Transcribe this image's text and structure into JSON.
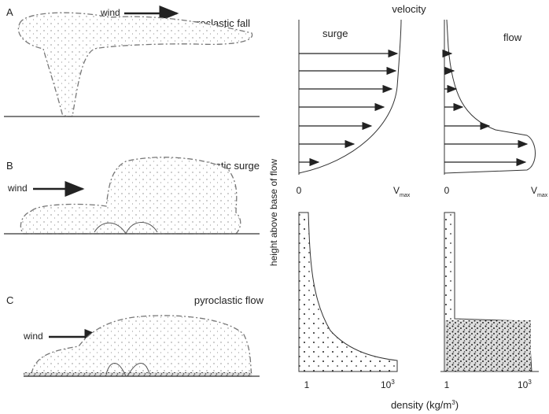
{
  "panels": [
    {
      "letter": "A",
      "wind": "wind",
      "name": "pyroclastic fall"
    },
    {
      "letter": "B",
      "wind": "wind",
      "name": "pyroclastic surge"
    },
    {
      "letter": "C",
      "wind": "wind",
      "name": "pyroclastic flow"
    }
  ],
  "velocity_title": "velocity",
  "y_axis_label": "height above base of flow",
  "profiles": [
    {
      "name": "surge",
      "velocity_ticks": [
        "0",
        {
          "base": "V",
          "sub": "max"
        }
      ],
      "density_ticks": [
        "1",
        {
          "base": "10",
          "sup": "3"
        }
      ]
    },
    {
      "name": "flow",
      "velocity_ticks": [
        "0",
        {
          "base": "V",
          "sub": "max"
        }
      ],
      "density_ticks": [
        "1",
        {
          "base": "10",
          "sup": "3"
        }
      ]
    }
  ],
  "density_label": {
    "text": "density (kg/m",
    "sup": "3",
    "close": ")"
  }
}
